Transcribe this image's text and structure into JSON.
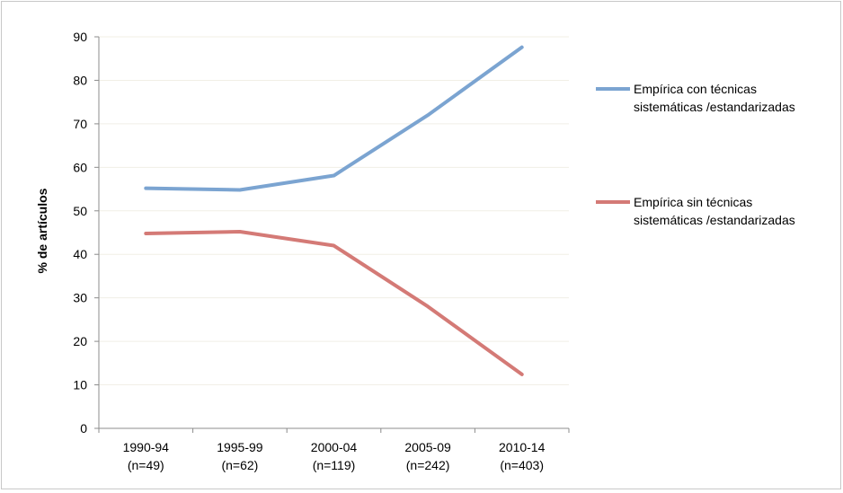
{
  "chart_data": {
    "type": "line",
    "title": "",
    "xlabel": "",
    "ylabel": "% de artículos",
    "ylim": [
      0,
      90
    ],
    "yticks": [
      0,
      10,
      20,
      30,
      40,
      50,
      60,
      70,
      80,
      90
    ],
    "grid": true,
    "legend_position": "right",
    "categories": [
      [
        "1990-94",
        "(n=49)"
      ],
      [
        "1995-99",
        "(n=62)"
      ],
      [
        "2000-04",
        "(n=119)"
      ],
      [
        "2005-09",
        "(n=242)"
      ],
      [
        "2010-14",
        "(n=403)"
      ]
    ],
    "series": [
      {
        "name_lines": [
          "Empírica con técnicas",
          "sistemáticas /estandarizadas"
        ],
        "color": "#7ba4d1",
        "values": [
          55.2,
          54.8,
          58.1,
          72,
          87.6
        ]
      },
      {
        "name_lines": [
          "Empírica sin técnicas",
          "sistemáticas /estandarizadas"
        ],
        "color": "#d47a76",
        "values": [
          44.8,
          45.2,
          42,
          28,
          12.4
        ]
      }
    ]
  }
}
